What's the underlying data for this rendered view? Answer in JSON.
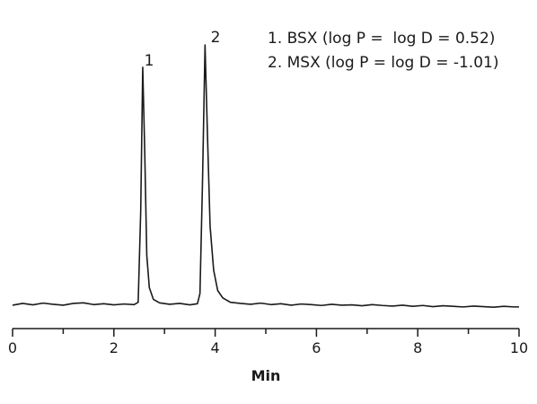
{
  "chart_data": {
    "type": "line",
    "x_label": "Min",
    "annotations": [
      "1. BSX (log P =  log D = 0.52)",
      "2. MSX (log P = log D = -1.01)"
    ],
    "peak_labels": [
      "1",
      "2"
    ],
    "xlim": [
      0,
      10
    ],
    "xticks": [
      0,
      2,
      4,
      6,
      8,
      10
    ],
    "xminorticks": [
      1,
      3,
      5,
      7,
      9
    ],
    "ylim": [
      0,
      100
    ],
    "series": [
      {
        "color": "#1a1a1a",
        "x": [
          0,
          0.2,
          0.4,
          0.6,
          0.8,
          1.0,
          1.2,
          1.4,
          1.6,
          1.8,
          2.0,
          2.2,
          2.4,
          2.48,
          2.53,
          2.57,
          2.61,
          2.65,
          2.7,
          2.78,
          2.9,
          3.1,
          3.3,
          3.5,
          3.65,
          3.7,
          3.75,
          3.8,
          3.85,
          3.9,
          3.97,
          4.05,
          4.15,
          4.3,
          4.5,
          4.7,
          4.9,
          5.1,
          5.3,
          5.5,
          5.7,
          5.9,
          6.1,
          6.3,
          6.5,
          6.7,
          6.9,
          7.1,
          7.3,
          7.5,
          7.7,
          7.9,
          8.1,
          8.3,
          8.5,
          8.7,
          8.9,
          9.1,
          9.3,
          9.5,
          9.7,
          9.9,
          10
        ],
        "values": [
          8.0,
          8.6,
          8.1,
          8.7,
          8.3,
          8.0,
          8.6,
          8.8,
          8.2,
          8.5,
          8.1,
          8.4,
          8.2,
          9.0,
          40,
          89.3,
          60,
          25,
          14,
          10,
          8.8,
          8.3,
          8.6,
          8.1,
          8.5,
          12,
          50,
          96.9,
          65,
          35,
          20,
          13,
          10.5,
          9.0,
          8.6,
          8.3,
          8.7,
          8.2,
          8.5,
          8.0,
          8.4,
          8.2,
          7.9,
          8.3,
          8.0,
          8.1,
          7.8,
          8.2,
          7.9,
          7.7,
          8.0,
          7.6,
          7.9,
          7.5,
          7.8,
          7.6,
          7.4,
          7.7,
          7.5,
          7.3,
          7.6,
          7.4,
          7.4
        ]
      }
    ]
  }
}
